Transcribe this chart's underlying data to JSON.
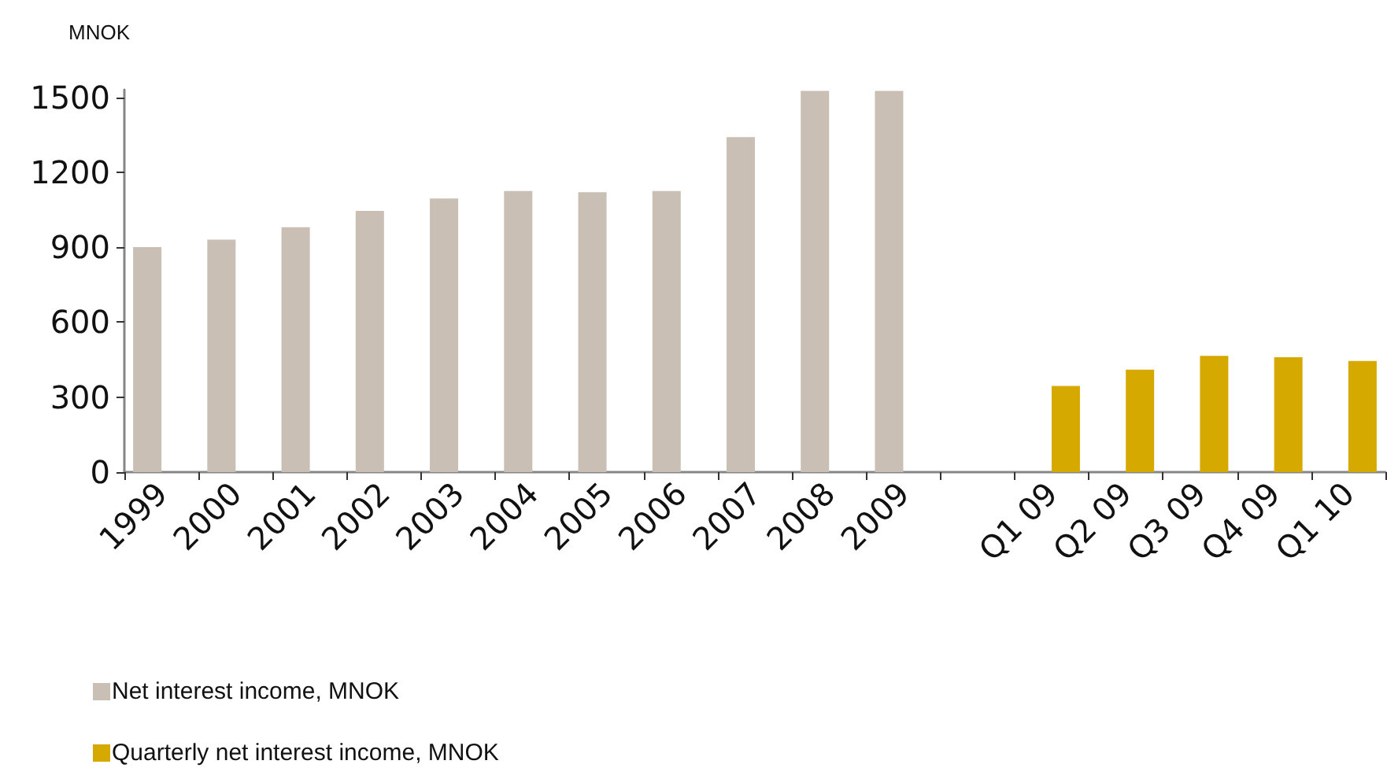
{
  "chart_data": {
    "type": "bar",
    "ylabel": "MNOK",
    "categories": [
      "1999",
      "2000",
      "2001",
      "2002",
      "2003",
      "2004",
      "2005",
      "2006",
      "2007",
      "2008",
      "2009",
      null,
      "Q1 09",
      "Q2 09",
      "Q3 09",
      "Q4 09",
      "Q1 10"
    ],
    "series": [
      {
        "name": "Net interest income, MNOK",
        "color": "#c9bfb5",
        "values": [
          900,
          930,
          980,
          1045,
          1095,
          1125,
          1120,
          1125,
          1340,
          1525,
          1525,
          null,
          null,
          null,
          null,
          null,
          null
        ]
      },
      {
        "name": "Quarterly net interest income, MNOK",
        "color": "#d6a900",
        "values": [
          null,
          null,
          null,
          null,
          null,
          null,
          null,
          null,
          null,
          null,
          null,
          null,
          345,
          410,
          465,
          460,
          445
        ]
      }
    ],
    "ylim": [
      0,
      1530
    ],
    "yticks": [
      0,
      300,
      600,
      900,
      1200,
      1500
    ],
    "grid": false,
    "legend": "bottom left"
  }
}
